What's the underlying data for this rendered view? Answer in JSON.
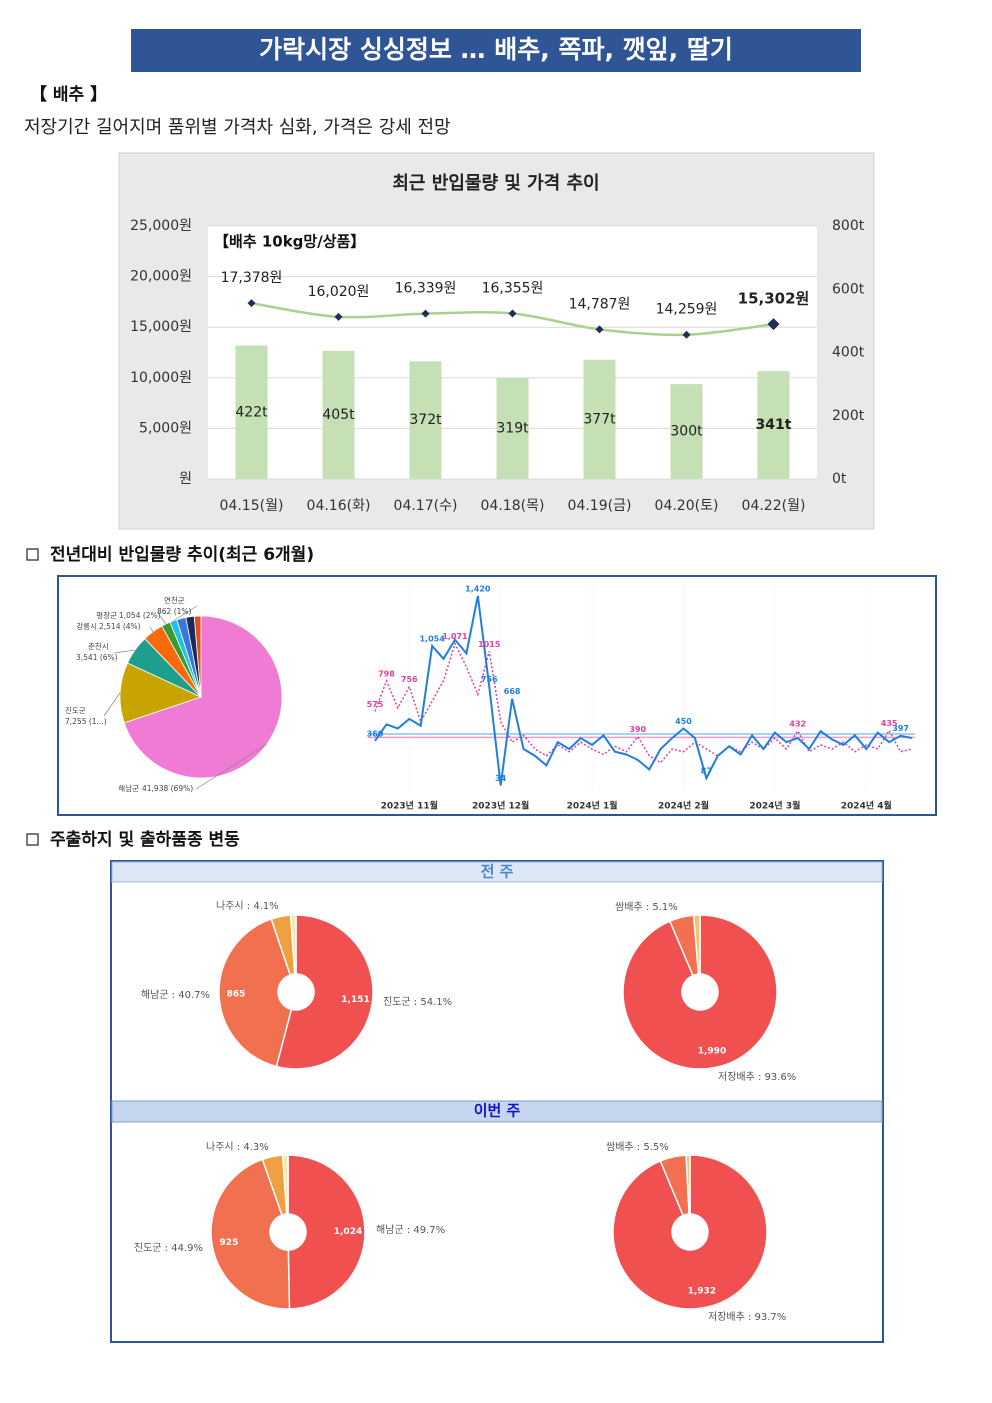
{
  "header": {
    "title": "가락시장 싱싱정보 … 배추, 쪽파, 깻잎, 딸기"
  },
  "section": {
    "label": "【 배추 】",
    "summary": "저장기간 길어지며 품위별 가격차 심화, 가격은 강세 전망"
  },
  "headings": [
    "전년대비 반입물량 추이(최근 6개월)",
    "주출하지 및 출하품종 변동"
  ],
  "panels": [
    "전 주",
    "이번 주"
  ],
  "chart_data": [
    {
      "type": "bar",
      "title": "최근 반입물량 및 가격 추이",
      "annotation": "【배추 10kg망/상품】",
      "categories": [
        "04.15(월)",
        "04.16(화)",
        "04.17(수)",
        "04.18(목)",
        "04.19(금)",
        "04.20(토)",
        "04.22(월)"
      ],
      "series": [
        {
          "type": "bar",
          "axis": "y2",
          "color": "#c5e0b4",
          "values": [
            422,
            405,
            372,
            319,
            377,
            300,
            341
          ],
          "value_labels": [
            "422t",
            "405t",
            "372t",
            "319t",
            "377t",
            "300t",
            "341t"
          ]
        },
        {
          "type": "line",
          "color": "#a9d18e",
          "marker_color": "#1f2d5a",
          "values": [
            17378,
            16020,
            16339,
            16355,
            14787,
            14259,
            15302
          ],
          "value_labels": [
            "17,378원",
            "16,020원",
            "16,339원",
            "16,355원",
            "14,787원",
            "14,259원",
            "15,302원"
          ]
        }
      ],
      "ylim": [
        0,
        25000
      ],
      "yticks": [
        {
          "value": 0,
          "label": "원"
        },
        {
          "value": 5000,
          "label": "5,000원"
        },
        {
          "value": 10000,
          "label": "10,000원"
        },
        {
          "value": 15000,
          "label": "15,000원"
        },
        {
          "value": 20000,
          "label": "20,000원"
        },
        {
          "value": 25000,
          "label": "25,000원"
        }
      ],
      "y2lim": [
        0,
        800
      ],
      "y2ticks": [
        {
          "value": 0,
          "label": "0t"
        },
        {
          "value": 200,
          "label": "200t"
        },
        {
          "value": 400,
          "label": "400t"
        },
        {
          "value": 600,
          "label": "600t"
        },
        {
          "value": 800,
          "label": "800t"
        }
      ],
      "grid": true,
      "highlight_last": true
    },
    {
      "type": "pie",
      "categories": [
        "해남군",
        "진도군",
        "춘천시",
        "강릉시",
        "평창군",
        "연천군",
        null,
        null,
        null
      ],
      "values": [
        41938,
        7255,
        3541,
        2514,
        1054,
        862,
        1100,
        1000,
        800
      ],
      "value_labels": [
        "41,938 (69%)",
        "7,255 (1...)",
        "3,541 (6%)",
        "2,514 (4%)",
        "1,054 (2%)",
        "862 (1%)",
        null,
        null,
        null
      ],
      "colors": [
        "#f07bd4",
        "#c8a400",
        "#1e9e8c",
        "#f86a0c",
        "#3a9a2a",
        "#20c0e8",
        "#3a78d8",
        "#1a2a5a",
        "#e05020"
      ]
    },
    {
      "type": "line",
      "categories": [
        null,
        null,
        null,
        "2023년 11월",
        null,
        null,
        null,
        null,
        null,
        null,
        null,
        "2023년 12월",
        null,
        null,
        null,
        null,
        null,
        null,
        null,
        "2024년 1월",
        null,
        null,
        null,
        null,
        null,
        null,
        null,
        "2024년 2월",
        null,
        null,
        null,
        null,
        null,
        null,
        null,
        "2024년 3월",
        null,
        null,
        null,
        null,
        null,
        null,
        null,
        "2024년 4월",
        null,
        null,
        null,
        null
      ],
      "ylim": [
        0,
        1500
      ],
      "reference_lines": [
        {
          "value": 410,
          "color": "#8fc0ee"
        },
        {
          "value": 385,
          "color": "#ee9cc0"
        }
      ],
      "series": [
        {
          "color": "#1e7fe0",
          "dash": false,
          "values": [
            360,
            480,
            450,
            520,
            470,
            1054,
            960,
            1100,
            1000,
            1420,
            756,
            34,
            668,
            300,
            250,
            180,
            350,
            300,
            380,
            330,
            400,
            280,
            260,
            220,
            150,
            300,
            380,
            450,
            380,
            87,
            250,
            320,
            260,
            400,
            300,
            420,
            350,
            380,
            300,
            430,
            370,
            330,
            400,
            300,
            420,
            350,
            397,
            380
          ],
          "value_labels": [
            "360",
            null,
            null,
            null,
            null,
            "1,054",
            null,
            null,
            null,
            "1,420",
            "756",
            "34",
            "668",
            null,
            null,
            null,
            null,
            null,
            null,
            null,
            null,
            null,
            null,
            null,
            null,
            null,
            null,
            "450",
            null,
            "87",
            null,
            null,
            null,
            null,
            null,
            null,
            null,
            null,
            null,
            null,
            null,
            null,
            null,
            null,
            null,
            null,
            "397",
            null
          ]
        },
        {
          "color": "#e040a0",
          "dash": true,
          "values": [
            575,
            798,
            600,
            756,
            500,
            650,
            800,
            1071,
            900,
            700,
            1015,
            500,
            350,
            400,
            300,
            250,
            330,
            280,
            350,
            300,
            260,
            320,
            280,
            390,
            250,
            200,
            300,
            280,
            350,
            300,
            250,
            320,
            280,
            350,
            300,
            380,
            300,
            432,
            280,
            330,
            300,
            350,
            280,
            330,
            300,
            435,
            280,
            300
          ],
          "value_labels": [
            "575",
            "798",
            null,
            "756",
            null,
            null,
            null,
            "1,071",
            null,
            null,
            "1015",
            null,
            null,
            null,
            null,
            null,
            null,
            null,
            null,
            null,
            null,
            null,
            null,
            "390",
            null,
            null,
            null,
            null,
            null,
            null,
            null,
            null,
            null,
            null,
            null,
            null,
            null,
            "432",
            null,
            null,
            null,
            null,
            null,
            null,
            null,
            "435",
            null,
            null
          ]
        }
      ]
    },
    {
      "type": "donut",
      "labels": [
        "진도군 : 54.1%",
        "해남군 : 40.7%",
        "나주시 : 4.1%",
        null
      ],
      "values": [
        54.1,
        40.7,
        4.1,
        1.1
      ],
      "amount_labels": [
        "1,151",
        "865",
        null,
        null
      ],
      "colors": [
        "#f05050",
        "#f07050",
        "#f0a040",
        "#f7e7b0"
      ]
    },
    {
      "type": "donut",
      "labels": [
        "저장배추 : 93.6%",
        "쌈배추 : 5.1%",
        null
      ],
      "values": [
        93.6,
        5.1,
        1.3
      ],
      "amount_labels": [
        "1,990",
        null,
        null
      ],
      "colors": [
        "#f05050",
        "#f07050",
        "#f5c070"
      ]
    },
    {
      "type": "donut",
      "labels": [
        "해남군 : 49.7%",
        "진도군 : 44.9%",
        "나주시 : 4.3%",
        null
      ],
      "values": [
        49.7,
        44.9,
        4.3,
        1.1
      ],
      "amount_labels": [
        "1,024",
        "925",
        null,
        null
      ],
      "colors": [
        "#f05050",
        "#f07050",
        "#f0a040",
        "#f7e7b0"
      ]
    },
    {
      "type": "donut",
      "labels": [
        "저장배추 : 93.7%",
        "쌈배추 : 5.5%",
        null
      ],
      "values": [
        93.7,
        5.5,
        0.8
      ],
      "amount_labels": [
        "1,932",
        null,
        null
      ],
      "colors": [
        "#f05050",
        "#f07050",
        "#f5c070"
      ]
    }
  ]
}
